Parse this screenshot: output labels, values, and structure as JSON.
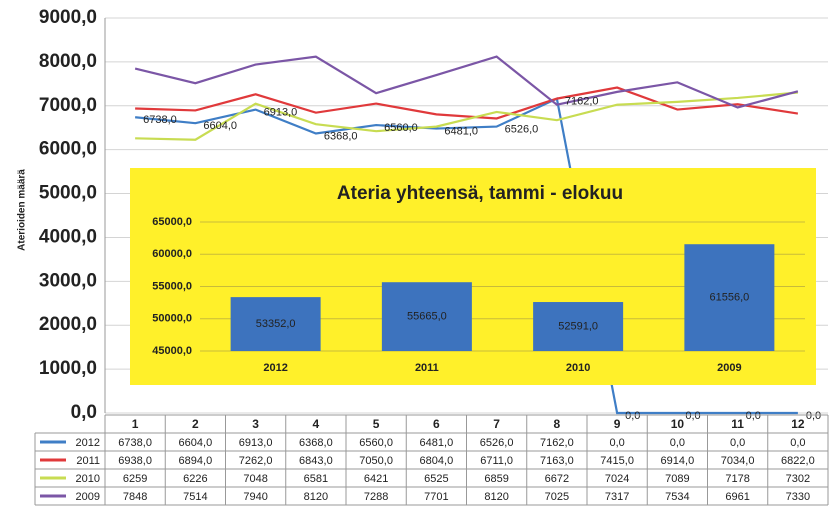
{
  "chart_data": [
    {
      "type": "line",
      "y_label": "Aterioiden määrä",
      "categories": [
        "1",
        "2",
        "3",
        "4",
        "5",
        "6",
        "7",
        "8",
        "9",
        "10",
        "11",
        "12"
      ],
      "ylim": [
        0,
        9000
      ],
      "yticks": [
        {
          "value": 0,
          "label": "0,0"
        },
        {
          "value": 1000,
          "label": "1000,0"
        },
        {
          "value": 2000,
          "label": "2000,0"
        },
        {
          "value": 3000,
          "label": "3000,0"
        },
        {
          "value": 4000,
          "label": "4000,0"
        },
        {
          "value": 5000,
          "label": "5000,0"
        },
        {
          "value": 6000,
          "label": "6000,0"
        },
        {
          "value": 7000,
          "label": "7000,0"
        },
        {
          "value": 8000,
          "label": "8000,0"
        },
        {
          "value": 9000,
          "label": "9000,0"
        }
      ],
      "grid": true,
      "series": [
        {
          "name": "2012",
          "color": "#3f7ec6",
          "values": [
            6738,
            6604,
            6913,
            6368,
            6560,
            6481,
            6526,
            7162,
            0,
            0,
            0,
            0
          ],
          "value_labels": [
            "6738,0",
            "6604,0",
            "6913,0",
            "6368,0",
            "6560,0",
            "6481,0",
            "6526,0",
            "7162,0",
            "0,0",
            "0,0",
            "0,0",
            "0,0"
          ]
        },
        {
          "name": "2011",
          "color": "#e0393b",
          "values": [
            6938,
            6894,
            7262,
            6843,
            7050,
            6804,
            6711,
            7163,
            7415,
            6914,
            7034,
            6822
          ],
          "value_labels": [
            "6938,0",
            "6894,0",
            "7262,0",
            "6843,0",
            "7050,0",
            "6804,0",
            "6711,0",
            "7163,0",
            "7415,0",
            "6914,0",
            "7034,0",
            "6822,0"
          ]
        },
        {
          "name": "2010",
          "color": "#c8dc52",
          "values": [
            6259,
            6226,
            7048,
            6581,
            6421,
            6525,
            6859,
            6672,
            7024,
            7089,
            7178,
            7302
          ]
        },
        {
          "name": "2009",
          "color": "#7b56a6",
          "values": [
            7848,
            7514,
            7940,
            8120,
            7288,
            7701,
            8120,
            7025,
            7317,
            7534,
            6961,
            7330
          ]
        }
      ]
    },
    {
      "type": "bar",
      "title": "Ateria yhteensä, tammi - elokuu",
      "categories": [
        "2012",
        "2011",
        "2010",
        "2009"
      ],
      "values": [
        53352,
        55665,
        52591,
        61556
      ],
      "value_labels": [
        "53352,0",
        "55665,0",
        "52591,0",
        "61556,0"
      ],
      "color": "#3d73be",
      "background": "#fff02a",
      "ylim": [
        45000,
        65000
      ],
      "yticks": [
        {
          "value": 45000,
          "label": "45000,0"
        },
        {
          "value": 50000,
          "label": "50000,0"
        },
        {
          "value": 55000,
          "label": "55000,0"
        },
        {
          "value": 60000,
          "label": "60000,0"
        },
        {
          "value": 65000,
          "label": "65000,0"
        }
      ],
      "grid": true
    }
  ]
}
